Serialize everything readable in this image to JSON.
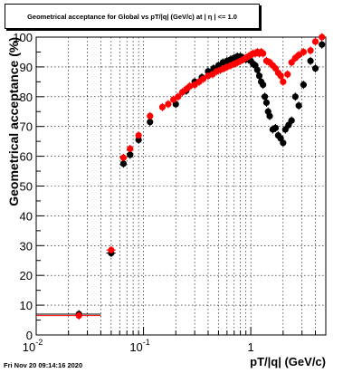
{
  "title": "Geometrical acceptance for Global vs pT/|q| (GeV/c) at | η | <= 1.0",
  "timestamp": "Fri Nov 20 09:14:16 2020",
  "chart_data": {
    "type": "scatter",
    "xlabel": "pT/|q| (GeV/c)",
    "ylabel": "Geometrical acceptance (%)",
    "xscale": "log",
    "xlim": [
      0.01,
      5.0
    ],
    "ylim": [
      0,
      100
    ],
    "grid": true,
    "y_ticks": [
      "0",
      "10",
      "20",
      "30",
      "40",
      "50",
      "60",
      "70",
      "80",
      "90",
      "100"
    ],
    "x_tick_labels": [
      {
        "value": 0.01,
        "base": "10",
        "exp": "-2"
      },
      {
        "value": 0.1,
        "base": "10",
        "exp": "-1"
      },
      {
        "value": 1,
        "base": "1",
        "exp": ""
      }
    ],
    "series": [
      {
        "color": "#000000",
        "marker": "circle",
        "points": [
          {
            "x": 0.025,
            "y": 7.0,
            "xlo": 0.01,
            "xhi": 0.04
          },
          {
            "x": 0.05,
            "y": 27.5,
            "xlo": 0.045,
            "xhi": 0.055
          },
          {
            "x": 0.065,
            "y": 57.5
          },
          {
            "x": 0.075,
            "y": 60.5
          },
          {
            "x": 0.09,
            "y": 65.5
          },
          {
            "x": 0.115,
            "y": 71.5
          },
          {
            "x": 0.2,
            "y": 77.5
          },
          {
            "x": 0.25,
            "y": 82.0
          },
          {
            "x": 0.3,
            "y": 85.0
          },
          {
            "x": 0.35,
            "y": 86.5
          },
          {
            "x": 0.4,
            "y": 88.5
          },
          {
            "x": 0.45,
            "y": 89.5
          },
          {
            "x": 0.5,
            "y": 90.5
          },
          {
            "x": 0.55,
            "y": 91.5
          },
          {
            "x": 0.6,
            "y": 92.0
          },
          {
            "x": 0.65,
            "y": 92.5
          },
          {
            "x": 0.7,
            "y": 93.0
          },
          {
            "x": 0.75,
            "y": 93.5
          },
          {
            "x": 0.8,
            "y": 93.5
          },
          {
            "x": 0.85,
            "y": 93.0
          },
          {
            "x": 0.9,
            "y": 92.5
          },
          {
            "x": 0.95,
            "y": 92.5
          },
          {
            "x": 1.0,
            "y": 92.0
          },
          {
            "x": 1.05,
            "y": 91.0
          },
          {
            "x": 1.1,
            "y": 90.5
          },
          {
            "x": 1.15,
            "y": 89.0
          },
          {
            "x": 1.2,
            "y": 87.0
          },
          {
            "x": 1.25,
            "y": 85.0
          },
          {
            "x": 1.3,
            "y": 84.0
          },
          {
            "x": 1.35,
            "y": 80.0
          },
          {
            "x": 1.4,
            "y": 78.0
          },
          {
            "x": 1.45,
            "y": 75.0
          },
          {
            "x": 1.5,
            "y": 73.5
          },
          {
            "x": 1.6,
            "y": 69.0
          },
          {
            "x": 1.7,
            "y": 69.5
          },
          {
            "x": 1.8,
            "y": 67.0
          },
          {
            "x": 1.9,
            "y": 66.0
          },
          {
            "x": 2.0,
            "y": 64.5
          },
          {
            "x": 2.1,
            "y": 69.0
          },
          {
            "x": 2.25,
            "y": 70.5
          },
          {
            "x": 2.4,
            "y": 72.0
          },
          {
            "x": 2.6,
            "y": 80.0
          },
          {
            "x": 2.8,
            "y": 77.0
          },
          {
            "x": 3.1,
            "y": 84.0
          },
          {
            "x": 3.6,
            "y": 92.0
          },
          {
            "x": 4.0,
            "y": 89.5
          },
          {
            "x": 4.6,
            "y": 97.5
          }
        ]
      },
      {
        "color": "#ff0000",
        "marker": "circle",
        "points": [
          {
            "x": 0.025,
            "y": 6.5,
            "xlo": 0.01,
            "xhi": 0.04
          },
          {
            "x": 0.05,
            "y": 28.5,
            "xlo": 0.045,
            "xhi": 0.055
          },
          {
            "x": 0.065,
            "y": 59.5
          },
          {
            "x": 0.075,
            "y": 62.5
          },
          {
            "x": 0.09,
            "y": 67.0
          },
          {
            "x": 0.115,
            "y": 73.5
          },
          {
            "x": 0.15,
            "y": 76.5
          },
          {
            "x": 0.17,
            "y": 77.5
          },
          {
            "x": 0.19,
            "y": 79.0
          },
          {
            "x": 0.21,
            "y": 80.0
          },
          {
            "x": 0.23,
            "y": 81.5
          },
          {
            "x": 0.25,
            "y": 82.5
          },
          {
            "x": 0.27,
            "y": 83.5
          },
          {
            "x": 0.3,
            "y": 84.0
          },
          {
            "x": 0.33,
            "y": 85.0
          },
          {
            "x": 0.36,
            "y": 86.0
          },
          {
            "x": 0.4,
            "y": 87.0
          },
          {
            "x": 0.44,
            "y": 87.5
          },
          {
            "x": 0.48,
            "y": 88.5
          },
          {
            "x": 0.52,
            "y": 89.0
          },
          {
            "x": 0.56,
            "y": 89.5
          },
          {
            "x": 0.6,
            "y": 90.0
          },
          {
            "x": 0.65,
            "y": 90.5
          },
          {
            "x": 0.7,
            "y": 91.0
          },
          {
            "x": 0.75,
            "y": 91.5
          },
          {
            "x": 0.8,
            "y": 92.0
          },
          {
            "x": 0.85,
            "y": 92.5
          },
          {
            "x": 0.9,
            "y": 93.0
          },
          {
            "x": 0.95,
            "y": 93.5
          },
          {
            "x": 1.0,
            "y": 94.0
          },
          {
            "x": 1.05,
            "y": 94.5
          },
          {
            "x": 1.1,
            "y": 94.5
          },
          {
            "x": 1.15,
            "y": 95.0
          },
          {
            "x": 1.2,
            "y": 94.5
          },
          {
            "x": 1.25,
            "y": 95.0
          },
          {
            "x": 1.3,
            "y": 94.5
          },
          {
            "x": 1.4,
            "y": 92.0
          },
          {
            "x": 1.5,
            "y": 91.5
          },
          {
            "x": 1.6,
            "y": 90.5
          },
          {
            "x": 1.7,
            "y": 89.5
          },
          {
            "x": 1.8,
            "y": 88.0
          },
          {
            "x": 1.9,
            "y": 87.0
          },
          {
            "x": 2.0,
            "y": 85.0
          },
          {
            "x": 2.2,
            "y": 87.5
          },
          {
            "x": 2.4,
            "y": 91.5
          },
          {
            "x": 2.6,
            "y": 93.0
          },
          {
            "x": 2.8,
            "y": 94.0
          },
          {
            "x": 3.1,
            "y": 95.0
          },
          {
            "x": 3.6,
            "y": 95.5
          },
          {
            "x": 4.0,
            "y": 98.5
          },
          {
            "x": 4.6,
            "y": 100.0
          }
        ]
      }
    ]
  }
}
